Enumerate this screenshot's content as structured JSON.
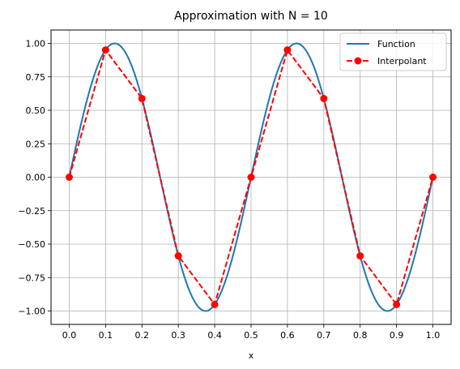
{
  "chart_data": {
    "type": "line",
    "title": "Approximation with N = 10",
    "xlabel": "x",
    "ylabel": "",
    "xlim": [
      -0.05,
      1.05
    ],
    "ylim": [
      -1.1,
      1.1
    ],
    "grid": true,
    "legend_position": "top-right",
    "x_ticks": [
      0.0,
      0.1,
      0.2,
      0.3,
      0.4,
      0.5,
      0.6,
      0.7,
      0.8,
      0.9,
      1.0
    ],
    "x_tick_labels": [
      "0.0",
      "0.1",
      "0.2",
      "0.3",
      "0.4",
      "0.5",
      "0.6",
      "0.7",
      "0.8",
      "0.9",
      "1.0"
    ],
    "y_ticks": [
      -1.0,
      -0.75,
      -0.5,
      -0.25,
      0.0,
      0.25,
      0.5,
      0.75,
      1.0
    ],
    "y_tick_labels": [
      "−1.00",
      "−0.75",
      "−0.50",
      "−0.25",
      "0.00",
      "0.25",
      "0.50",
      "0.75",
      "1.00"
    ],
    "series": [
      {
        "name": "Function",
        "color": "#1f77b4",
        "style": "solid",
        "markers": false,
        "x": [
          0.0,
          0.025,
          0.05,
          0.075,
          0.1,
          0.125,
          0.15,
          0.175,
          0.2,
          0.225,
          0.25,
          0.275,
          0.3,
          0.325,
          0.35,
          0.375,
          0.4,
          0.425,
          0.45,
          0.475,
          0.5,
          0.525,
          0.55,
          0.575,
          0.6,
          0.625,
          0.65,
          0.675,
          0.7,
          0.725,
          0.75,
          0.775,
          0.8,
          0.825,
          0.85,
          0.875,
          0.9,
          0.925,
          0.95,
          0.975,
          1.0
        ],
        "y": [
          0.0,
          0.309,
          0.588,
          0.809,
          0.951,
          1.0,
          0.951,
          0.809,
          0.588,
          0.309,
          0.0,
          -0.309,
          -0.588,
          -0.809,
          -0.951,
          -1.0,
          -0.951,
          -0.809,
          -0.588,
          -0.309,
          0.0,
          0.309,
          0.588,
          0.809,
          0.951,
          1.0,
          0.951,
          0.809,
          0.588,
          0.309,
          0.0,
          -0.309,
          -0.588,
          -0.809,
          -0.951,
          -1.0,
          -0.951,
          -0.809,
          -0.588,
          -0.309,
          0.0
        ]
      },
      {
        "name": "Interpolant",
        "color": "#ff0000",
        "style": "dashed",
        "markers": true,
        "x": [
          0.0,
          0.1,
          0.2,
          0.3,
          0.4,
          0.5,
          0.6,
          0.7,
          0.8,
          0.9,
          1.0
        ],
        "y": [
          0.0,
          0.951,
          0.588,
          -0.588,
          -0.951,
          0.0,
          0.951,
          0.588,
          -0.588,
          -0.951,
          0.0
        ]
      }
    ]
  }
}
